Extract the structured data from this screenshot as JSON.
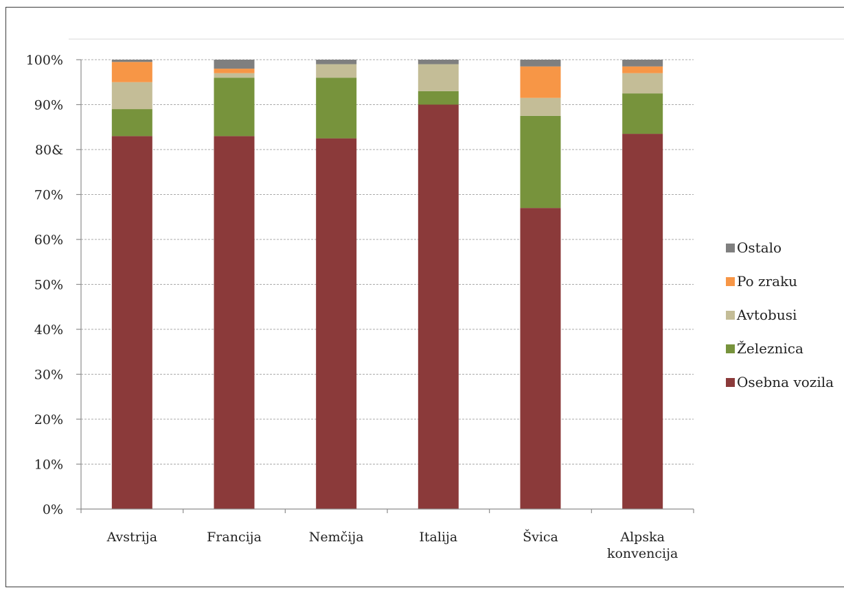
{
  "chart_data": {
    "type": "bar",
    "stacked": true,
    "title": "",
    "xlabel": "",
    "ylabel": "",
    "ylim": [
      0,
      100
    ],
    "y_tick_labels": [
      "0%",
      "10%",
      "20%",
      "30%",
      "40%",
      "50%",
      "60%",
      "70%",
      "80&",
      "90%",
      "100%"
    ],
    "categories": [
      [
        "Avstrija"
      ],
      [
        "Francija"
      ],
      [
        "Nemčija"
      ],
      [
        "Italija"
      ],
      [
        "Švica"
      ],
      [
        "Alpska",
        "konvencija"
      ]
    ],
    "series": [
      {
        "name": "Osebna vozila",
        "color": "#8b3a3a",
        "values": [
          83,
          83,
          82.5,
          90,
          67,
          83.5
        ]
      },
      {
        "name": "Železnica",
        "color": "#77933c",
        "values": [
          6,
          13,
          13.5,
          3,
          20.5,
          9
        ]
      },
      {
        "name": "Avtobusi",
        "color": "#c4bd97",
        "values": [
          6,
          1,
          3,
          6,
          4,
          4.5
        ]
      },
      {
        "name": "Po zraku",
        "color": "#f79646",
        "values": [
          4.5,
          1,
          0,
          0,
          7,
          1.5
        ]
      },
      {
        "name": "Ostalo",
        "color": "#7f7f7f",
        "values": [
          0.5,
          2,
          1,
          1,
          1.5,
          1.5
        ]
      }
    ],
    "legend_order": [
      "Ostalo",
      "Po zraku",
      "Avtobusi",
      "Železnica",
      "Osebna vozila"
    ],
    "legend_position": "right",
    "grid": true
  }
}
